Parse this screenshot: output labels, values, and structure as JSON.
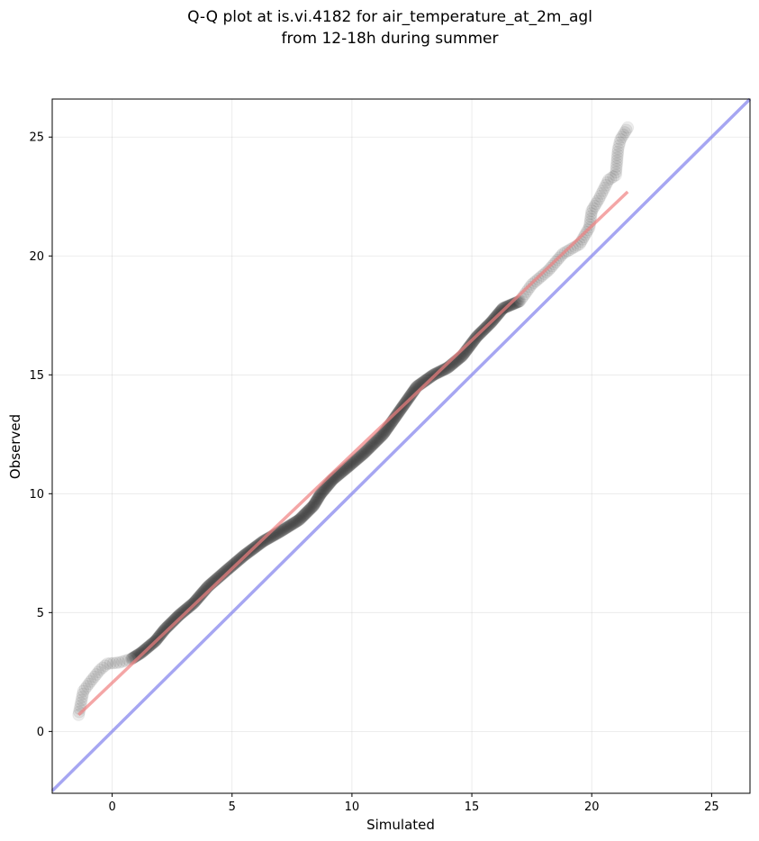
{
  "chart_data": {
    "type": "scatter",
    "title": "Q-Q plot at is.vi.4182 for air_temperature_at_2m_agl",
    "subtitle": "from 12-18h during summer",
    "xlabel": "Simulated",
    "ylabel": "Observed",
    "xlim": [
      -2.5,
      26.6
    ],
    "ylim": [
      -2.6,
      26.6
    ],
    "xticks": [
      0,
      5,
      10,
      15,
      20,
      25
    ],
    "yticks": [
      0,
      5,
      10,
      15,
      20,
      25
    ],
    "grid": true,
    "colors": {
      "points": "#000000",
      "fit_line": "#f08080",
      "identity_line": "#8888ee"
    },
    "anchors": [
      [
        -1.4,
        0.7
      ],
      [
        -1.2,
        1.7
      ],
      [
        -0.9,
        2.1
      ],
      [
        -0.5,
        2.6
      ],
      [
        -0.2,
        2.85
      ],
      [
        0.3,
        2.9
      ],
      [
        0.8,
        3.05
      ],
      [
        1.2,
        3.3
      ],
      [
        1.8,
        3.8
      ],
      [
        2.2,
        4.3
      ],
      [
        2.8,
        4.9
      ],
      [
        3.4,
        5.4
      ],
      [
        4.0,
        6.1
      ],
      [
        4.8,
        6.8
      ],
      [
        5.5,
        7.4
      ],
      [
        6.3,
        8.0
      ],
      [
        7.0,
        8.4
      ],
      [
        7.8,
        8.9
      ],
      [
        8.4,
        9.5
      ],
      [
        8.7,
        10.0
      ],
      [
        9.2,
        10.6
      ],
      [
        9.8,
        11.1
      ],
      [
        10.5,
        11.7
      ],
      [
        11.3,
        12.5
      ],
      [
        12.0,
        13.5
      ],
      [
        12.7,
        14.5
      ],
      [
        13.4,
        15.0
      ],
      [
        14.0,
        15.3
      ],
      [
        14.6,
        15.8
      ],
      [
        15.2,
        16.6
      ],
      [
        15.8,
        17.2
      ],
      [
        16.3,
        17.8
      ],
      [
        17.0,
        18.1
      ],
      [
        17.5,
        18.8
      ],
      [
        18.2,
        19.4
      ],
      [
        18.8,
        20.1
      ],
      [
        19.5,
        20.5
      ],
      [
        19.9,
        21.2
      ],
      [
        20.0,
        21.9
      ],
      [
        20.3,
        22.4
      ],
      [
        20.7,
        23.2
      ],
      [
        21.0,
        23.4
      ],
      [
        21.1,
        24.5
      ],
      [
        21.2,
        24.9
      ],
      [
        21.5,
        25.4
      ]
    ],
    "fit_line": {
      "x1": -1.4,
      "y1": 0.7,
      "x2": 21.5,
      "y2": 22.7
    },
    "identity_line": {
      "slope": 1,
      "intercept": 0
    }
  }
}
